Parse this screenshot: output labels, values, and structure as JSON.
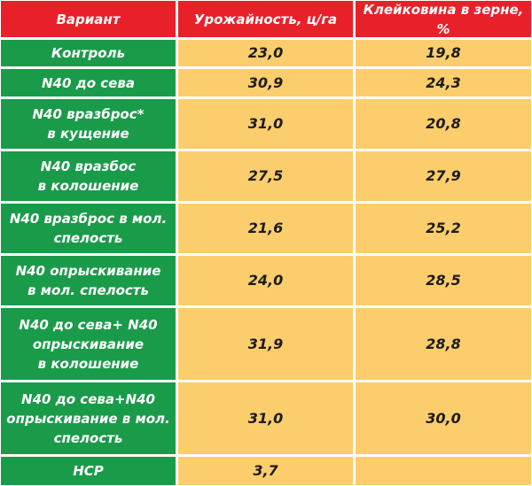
{
  "table": {
    "headers": {
      "variant": "Вариант",
      "yield": "Урожайность, ц/га",
      "gluten": "Клейковина в зерне, %"
    },
    "rows": [
      {
        "variant": [
          "Контроль"
        ],
        "yield": "23,0",
        "gluten": "19,8"
      },
      {
        "variant": [
          "N40 до сева"
        ],
        "yield": "30,9",
        "gluten": "24,3"
      },
      {
        "variant": [
          "N40 вразброс*",
          "в кущение"
        ],
        "yield": "31,0",
        "gluten": "20,8"
      },
      {
        "variant": [
          "N40 вразбос",
          "в колошение"
        ],
        "yield": "27,5",
        "gluten": "27,9"
      },
      {
        "variant": [
          "N40 вразброс в мол.",
          "спелость"
        ],
        "yield": "21,6",
        "gluten": "25,2"
      },
      {
        "variant": [
          "N40 опрыскивание",
          "в мол. спелость"
        ],
        "yield": "24,0",
        "gluten": "28,5"
      },
      {
        "variant": [
          "N40 до сева+ N40",
          "опрыскивание",
          "в колошение"
        ],
        "yield": "31,9",
        "gluten": "28,8"
      },
      {
        "variant": [
          "N40 до сева+N40",
          "опрыскивание в мол.",
          "спелость"
        ],
        "yield": "31,0",
        "gluten": "30,0"
      },
      {
        "variant": [
          "НСР"
        ],
        "yield": "3,7",
        "gluten": ""
      }
    ]
  }
}
